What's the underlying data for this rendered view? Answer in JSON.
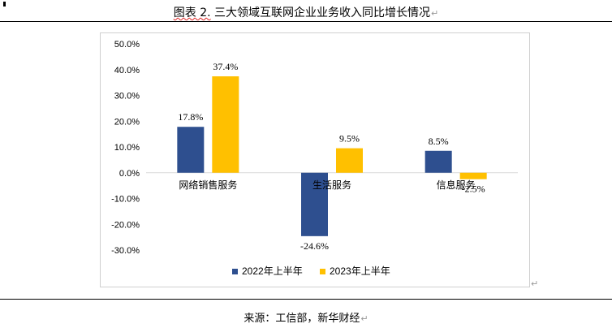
{
  "title": {
    "prefix": "图表 2.",
    "text": "三大领域互联网企业业务收入同比增长情况"
  },
  "source": "来源：工信部，新华财经",
  "colors": {
    "series_2022": "#2e4f8f",
    "series_2023": "#ffc000",
    "axis": "#d9d9d9"
  },
  "chart_data": {
    "type": "bar",
    "title": "三大领域互联网企业业务收入同比增长情况",
    "xlabel": "",
    "ylabel": "",
    "ylim": [
      -30,
      50
    ],
    "ytick_step": 10,
    "ytick_labels": [
      "50.0%",
      "40.0%",
      "30.0%",
      "20.0%",
      "10.0%",
      "0.0%",
      "-10.0%",
      "-20.0%",
      "-30.0%"
    ],
    "categories": [
      "网络销售服务",
      "生活服务",
      "信息服务"
    ],
    "series": [
      {
        "name": "2022年上半年",
        "values": [
          17.8,
          -24.6,
          8.5
        ],
        "labels": [
          "17.8%",
          "-24.6%",
          "8.5%"
        ]
      },
      {
        "name": "2023年上半年",
        "values": [
          37.4,
          9.5,
          -2.5
        ],
        "labels": [
          "37.4%",
          "9.5%",
          "-2.5%"
        ]
      }
    ],
    "grid": false,
    "legend_position": "bottom"
  }
}
